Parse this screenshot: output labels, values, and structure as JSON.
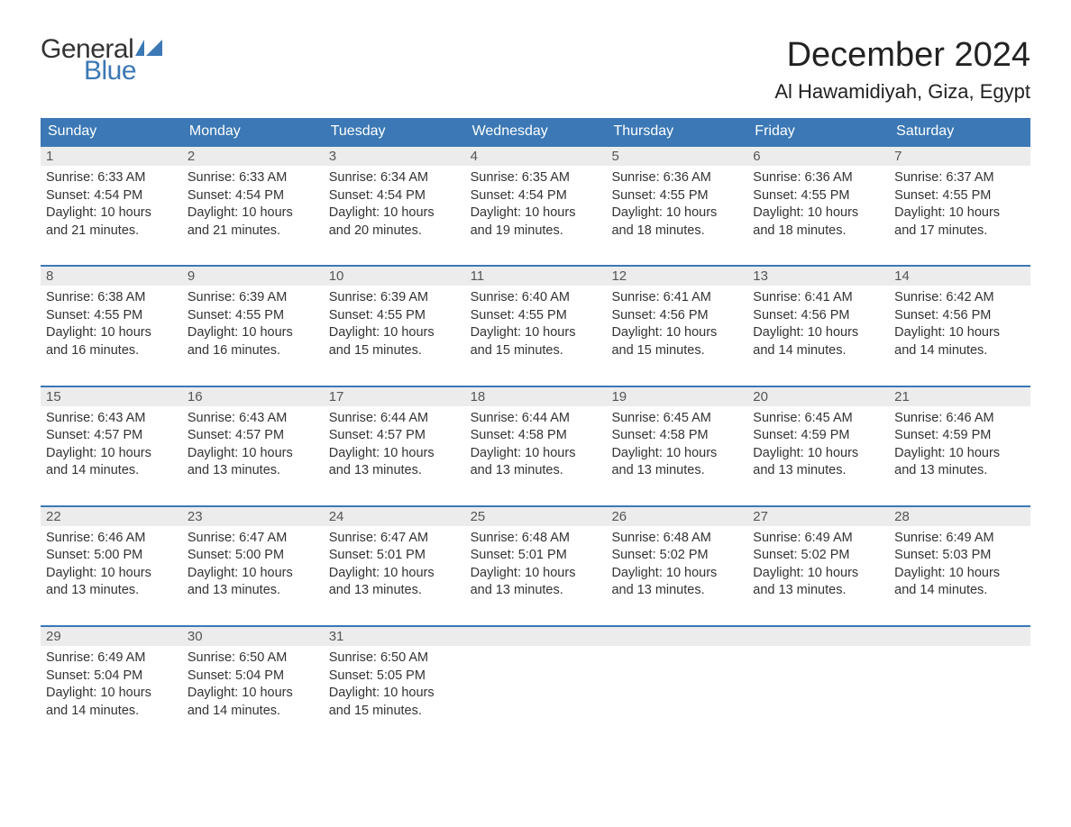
{
  "logo": {
    "general": "General",
    "blue": "Blue"
  },
  "title": "December 2024",
  "location": "Al Hawamidiyah, Giza, Egypt",
  "colors": {
    "header_bg": "#3b78b5",
    "header_text": "#ffffff",
    "daynum_bg": "#ececec",
    "daynum_text": "#555555",
    "body_text": "#333333",
    "rule": "#3b78b5",
    "logo_blue": "#3b78b5",
    "logo_dark": "#333333",
    "page_bg": "#ffffff"
  },
  "typography": {
    "title_fontsize": 38,
    "location_fontsize": 22,
    "dayheader_fontsize": 16,
    "daynum_fontsize": 15,
    "body_fontsize": 14.5,
    "logo_fontsize": 30
  },
  "day_headers": [
    "Sunday",
    "Monday",
    "Tuesday",
    "Wednesday",
    "Thursday",
    "Friday",
    "Saturday"
  ],
  "labels": {
    "sunrise": "Sunrise:",
    "sunset": "Sunset:",
    "daylight": "Daylight:"
  },
  "weeks": [
    [
      {
        "n": "1",
        "sunrise": "6:33 AM",
        "sunset": "4:54 PM",
        "daylight": "10 hours and 21 minutes."
      },
      {
        "n": "2",
        "sunrise": "6:33 AM",
        "sunset": "4:54 PM",
        "daylight": "10 hours and 21 minutes."
      },
      {
        "n": "3",
        "sunrise": "6:34 AM",
        "sunset": "4:54 PM",
        "daylight": "10 hours and 20 minutes."
      },
      {
        "n": "4",
        "sunrise": "6:35 AM",
        "sunset": "4:54 PM",
        "daylight": "10 hours and 19 minutes."
      },
      {
        "n": "5",
        "sunrise": "6:36 AM",
        "sunset": "4:55 PM",
        "daylight": "10 hours and 18 minutes."
      },
      {
        "n": "6",
        "sunrise": "6:36 AM",
        "sunset": "4:55 PM",
        "daylight": "10 hours and 18 minutes."
      },
      {
        "n": "7",
        "sunrise": "6:37 AM",
        "sunset": "4:55 PM",
        "daylight": "10 hours and 17 minutes."
      }
    ],
    [
      {
        "n": "8",
        "sunrise": "6:38 AM",
        "sunset": "4:55 PM",
        "daylight": "10 hours and 16 minutes."
      },
      {
        "n": "9",
        "sunrise": "6:39 AM",
        "sunset": "4:55 PM",
        "daylight": "10 hours and 16 minutes."
      },
      {
        "n": "10",
        "sunrise": "6:39 AM",
        "sunset": "4:55 PM",
        "daylight": "10 hours and 15 minutes."
      },
      {
        "n": "11",
        "sunrise": "6:40 AM",
        "sunset": "4:55 PM",
        "daylight": "10 hours and 15 minutes."
      },
      {
        "n": "12",
        "sunrise": "6:41 AM",
        "sunset": "4:56 PM",
        "daylight": "10 hours and 15 minutes."
      },
      {
        "n": "13",
        "sunrise": "6:41 AM",
        "sunset": "4:56 PM",
        "daylight": "10 hours and 14 minutes."
      },
      {
        "n": "14",
        "sunrise": "6:42 AM",
        "sunset": "4:56 PM",
        "daylight": "10 hours and 14 minutes."
      }
    ],
    [
      {
        "n": "15",
        "sunrise": "6:43 AM",
        "sunset": "4:57 PM",
        "daylight": "10 hours and 14 minutes."
      },
      {
        "n": "16",
        "sunrise": "6:43 AM",
        "sunset": "4:57 PM",
        "daylight": "10 hours and 13 minutes."
      },
      {
        "n": "17",
        "sunrise": "6:44 AM",
        "sunset": "4:57 PM",
        "daylight": "10 hours and 13 minutes."
      },
      {
        "n": "18",
        "sunrise": "6:44 AM",
        "sunset": "4:58 PM",
        "daylight": "10 hours and 13 minutes."
      },
      {
        "n": "19",
        "sunrise": "6:45 AM",
        "sunset": "4:58 PM",
        "daylight": "10 hours and 13 minutes."
      },
      {
        "n": "20",
        "sunrise": "6:45 AM",
        "sunset": "4:59 PM",
        "daylight": "10 hours and 13 minutes."
      },
      {
        "n": "21",
        "sunrise": "6:46 AM",
        "sunset": "4:59 PM",
        "daylight": "10 hours and 13 minutes."
      }
    ],
    [
      {
        "n": "22",
        "sunrise": "6:46 AM",
        "sunset": "5:00 PM",
        "daylight": "10 hours and 13 minutes."
      },
      {
        "n": "23",
        "sunrise": "6:47 AM",
        "sunset": "5:00 PM",
        "daylight": "10 hours and 13 minutes."
      },
      {
        "n": "24",
        "sunrise": "6:47 AM",
        "sunset": "5:01 PM",
        "daylight": "10 hours and 13 minutes."
      },
      {
        "n": "25",
        "sunrise": "6:48 AM",
        "sunset": "5:01 PM",
        "daylight": "10 hours and 13 minutes."
      },
      {
        "n": "26",
        "sunrise": "6:48 AM",
        "sunset": "5:02 PM",
        "daylight": "10 hours and 13 minutes."
      },
      {
        "n": "27",
        "sunrise": "6:49 AM",
        "sunset": "5:02 PM",
        "daylight": "10 hours and 13 minutes."
      },
      {
        "n": "28",
        "sunrise": "6:49 AM",
        "sunset": "5:03 PM",
        "daylight": "10 hours and 14 minutes."
      }
    ],
    [
      {
        "n": "29",
        "sunrise": "6:49 AM",
        "sunset": "5:04 PM",
        "daylight": "10 hours and 14 minutes."
      },
      {
        "n": "30",
        "sunrise": "6:50 AM",
        "sunset": "5:04 PM",
        "daylight": "10 hours and 14 minutes."
      },
      {
        "n": "31",
        "sunrise": "6:50 AM",
        "sunset": "5:05 PM",
        "daylight": "10 hours and 15 minutes."
      },
      {
        "empty": true
      },
      {
        "empty": true
      },
      {
        "empty": true
      },
      {
        "empty": true
      }
    ]
  ]
}
